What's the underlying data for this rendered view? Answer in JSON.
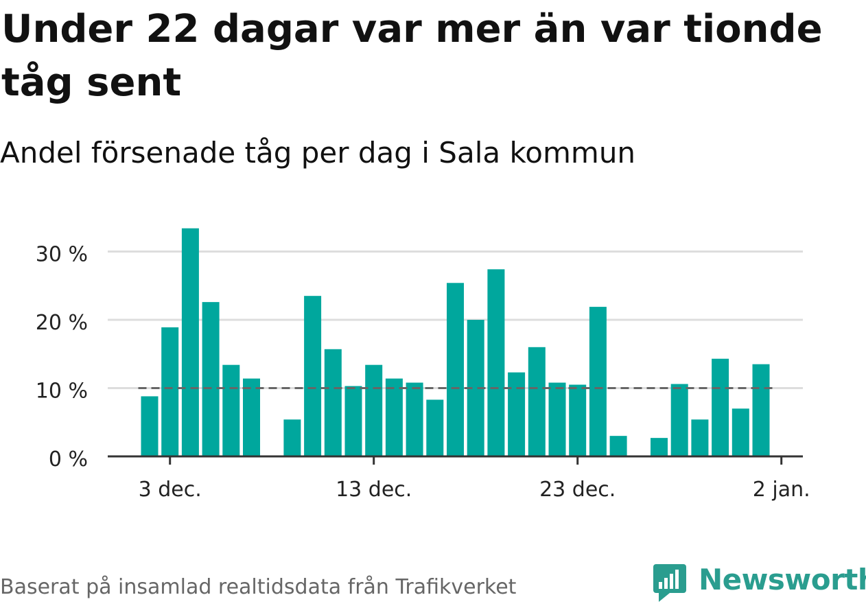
{
  "header": {
    "title": "Under 22 dagar var mer än var tionde tåg sent",
    "subtitle": "Andel försenade tåg per dag i Sala kommun"
  },
  "footer": {
    "source": "Baserat på insamlad realtidsdata från Trafikverket"
  },
  "logo": {
    "text": "Newsworthy"
  },
  "colors": {
    "bar": "#00a79d",
    "grid": "#dddddd",
    "reference": "#666666",
    "axis": "#333333"
  },
  "chart_data": {
    "type": "bar",
    "x_unit": "date",
    "dates": [
      "2020-12-02",
      "2020-12-03",
      "2020-12-04",
      "2020-12-05",
      "2020-12-06",
      "2020-12-07",
      "2020-12-08",
      "2020-12-09",
      "2020-12-10",
      "2020-12-11",
      "2020-12-12",
      "2020-12-13",
      "2020-12-14",
      "2020-12-15",
      "2020-12-16",
      "2020-12-17",
      "2020-12-18",
      "2020-12-19",
      "2020-12-20",
      "2020-12-21",
      "2020-12-22",
      "2020-12-23",
      "2020-12-24",
      "2020-12-25",
      "2020-12-26",
      "2020-12-27",
      "2020-12-28",
      "2020-12-29",
      "2020-12-30",
      "2020-12-31",
      "2021-01-01"
    ],
    "values": [
      8.8,
      18.9,
      33.4,
      22.6,
      13.4,
      11.4,
      null,
      5.4,
      23.5,
      15.7,
      10.3,
      13.4,
      11.4,
      10.8,
      8.3,
      25.4,
      20.0,
      27.4,
      12.3,
      16.0,
      10.8,
      10.5,
      21.9,
      3.0,
      null,
      2.7,
      10.6,
      5.4,
      14.3,
      7.0,
      13.5
    ],
    "ylabel": "",
    "ylim": [
      0,
      35
    ],
    "yticks": [
      0,
      10,
      20,
      30
    ],
    "ytick_labels": [
      "0 %",
      "10 %",
      "20 %",
      "30 %"
    ],
    "xtick_dates": [
      "2020-12-03",
      "2020-12-13",
      "2020-12-23",
      "2021-01-02"
    ],
    "xtick_labels": [
      "3 dec.",
      "13 dec.",
      "23 dec.",
      "2 jan."
    ],
    "reference_line": 10,
    "grid": true,
    "legend": "none"
  }
}
